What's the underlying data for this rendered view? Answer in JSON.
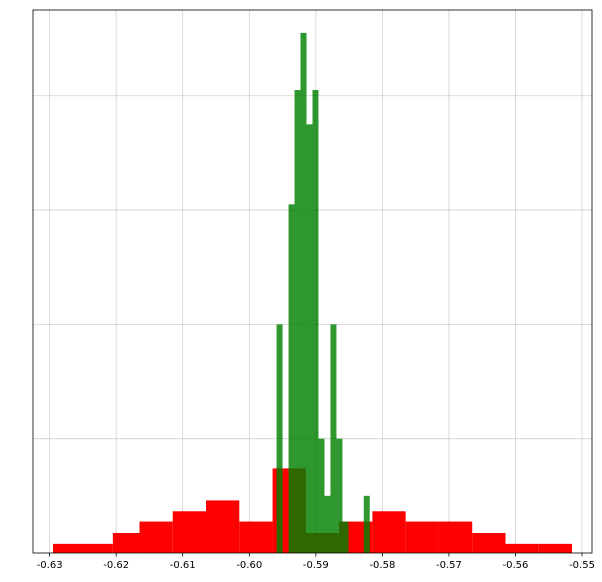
{
  "chart_data": {
    "type": "bar",
    "title": "",
    "xlabel": "",
    "ylabel": "",
    "xlim": [
      -0.6325,
      -0.5485
    ],
    "ylim": [
      0,
      9.5
    ],
    "grid": true,
    "x_ticks": [
      -0.63,
      -0.62,
      -0.61,
      -0.6,
      -0.59,
      -0.58,
      -0.57,
      -0.56,
      -0.55
    ],
    "x_tick_labels": [
      "-0.63",
      "-0.62",
      "-0.61",
      "-0.60",
      "-0.59",
      "-0.58",
      "-0.57",
      "-0.56",
      "-0.55"
    ],
    "y_gridlines": [
      2,
      4,
      6,
      8
    ],
    "series": [
      {
        "color": "#ff0000",
        "opacity": 1.0,
        "bins": [
          {
            "x0": -0.6295,
            "x1": -0.6205,
            "y": 0.16
          },
          {
            "x0": -0.6205,
            "x1": -0.6165,
            "y": 0.35
          },
          {
            "x0": -0.6165,
            "x1": -0.6115,
            "y": 0.55
          },
          {
            "x0": -0.6115,
            "x1": -0.6065,
            "y": 0.73
          },
          {
            "x0": -0.6065,
            "x1": -0.6015,
            "y": 0.92
          },
          {
            "x0": -0.6015,
            "x1": -0.5965,
            "y": 0.55
          },
          {
            "x0": -0.5965,
            "x1": -0.5915,
            "y": 1.48
          },
          {
            "x0": -0.5915,
            "x1": -0.5865,
            "y": 0.35
          },
          {
            "x0": -0.5865,
            "x1": -0.5815,
            "y": 0.55
          },
          {
            "x0": -0.5815,
            "x1": -0.5765,
            "y": 0.73
          },
          {
            "x0": -0.5765,
            "x1": -0.5715,
            "y": 0.55
          },
          {
            "x0": -0.5715,
            "x1": -0.5665,
            "y": 0.55
          },
          {
            "x0": -0.5665,
            "x1": -0.5615,
            "y": 0.35
          },
          {
            "x0": -0.5615,
            "x1": -0.5565,
            "y": 0.16
          },
          {
            "x0": -0.5565,
            "x1": -0.5515,
            "y": 0.16
          }
        ]
      },
      {
        "color": "#008000",
        "opacity": 0.82,
        "bins": [
          {
            "x0": -0.5959,
            "x1": -0.595,
            "y": 4.0
          },
          {
            "x0": -0.5941,
            "x1": -0.5932,
            "y": 6.1
          },
          {
            "x0": -0.5932,
            "x1": -0.5923,
            "y": 8.1
          },
          {
            "x0": -0.5923,
            "x1": -0.5914,
            "y": 9.1
          },
          {
            "x0": -0.5914,
            "x1": -0.5905,
            "y": 7.5
          },
          {
            "x0": -0.5905,
            "x1": -0.5896,
            "y": 8.1
          },
          {
            "x0": -0.5896,
            "x1": -0.5887,
            "y": 2.0
          },
          {
            "x0": -0.5887,
            "x1": -0.5878,
            "y": 1.0
          },
          {
            "x0": -0.5878,
            "x1": -0.5869,
            "y": 4.0
          },
          {
            "x0": -0.5869,
            "x1": -0.586,
            "y": 2.0
          },
          {
            "x0": -0.586,
            "x1": -0.5851,
            "y": 0.55
          },
          {
            "x0": -0.5828,
            "x1": -0.5819,
            "y": 1.0
          }
        ]
      }
    ]
  }
}
